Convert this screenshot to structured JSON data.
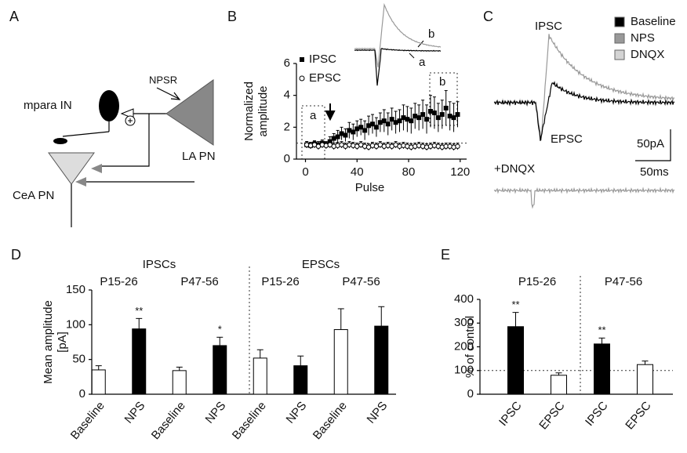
{
  "panel_labels": [
    "A",
    "B",
    "C",
    "D",
    "E"
  ],
  "diagram": {
    "cells": [
      "mpara IN",
      "LA PN",
      "CeA PN"
    ],
    "receptor": "NPSR"
  },
  "traces": {
    "top_labels": [
      "IPSC",
      "EPSC"
    ],
    "bottom_label": "+DNQX",
    "scale_y": "50pA",
    "scale_x": "50ms",
    "legend": [
      {
        "name": "Baseline",
        "color": "#000000"
      },
      {
        "name": "NPS",
        "color": "#999999"
      },
      {
        "name": "DNQX",
        "color": "#d4d4d4"
      }
    ],
    "inset_labels": [
      "a",
      "b"
    ]
  },
  "chart_data": [
    {
      "type": "scatter",
      "x_label": "Pulse",
      "y_label": [
        "Normalized",
        "amplitude"
      ],
      "box_labels": [
        "a",
        "b"
      ],
      "xlim": [
        -7,
        125
      ],
      "xticks": [
        0,
        40,
        80,
        120
      ],
      "ylim": [
        0,
        6
      ],
      "yticks": [
        0,
        2,
        4,
        6
      ],
      "reference_line": 1,
      "x": [
        1,
        4,
        7,
        10,
        13,
        16,
        19,
        22,
        25,
        28,
        31,
        34,
        37,
        40,
        43,
        46,
        49,
        52,
        55,
        58,
        61,
        64,
        67,
        70,
        73,
        76,
        79,
        82,
        85,
        88,
        91,
        94,
        97,
        100,
        103,
        106,
        109,
        112,
        115,
        118
      ],
      "series": [
        {
          "name": "IPSC",
          "marker": "square",
          "color": "#000000",
          "values": [
            0.9,
            0.85,
            0.95,
            0.9,
            1.0,
            0.9,
            1.1,
            1.3,
            1.4,
            1.6,
            1.5,
            1.8,
            1.7,
            1.9,
            2.0,
            1.8,
            2.1,
            2.2,
            2.0,
            2.3,
            2.4,
            2.2,
            2.5,
            2.3,
            2.4,
            2.6,
            2.5,
            2.4,
            2.7,
            2.6,
            2.8,
            2.5,
            3.0,
            2.9,
            2.6,
            2.8,
            3.2,
            2.7,
            2.6,
            2.8
          ],
          "errors": [
            0.2,
            0.2,
            0.2,
            0.2,
            0.2,
            0.2,
            0.3,
            0.3,
            0.4,
            0.4,
            0.4,
            0.5,
            0.5,
            0.5,
            0.5,
            0.6,
            0.6,
            0.6,
            0.6,
            0.6,
            0.7,
            0.7,
            0.7,
            0.7,
            0.7,
            0.8,
            0.8,
            0.8,
            0.8,
            0.8,
            0.9,
            0.9,
            1.0,
            1.0,
            0.9,
            0.9,
            1.1,
            0.9,
            0.9,
            0.8
          ]
        },
        {
          "name": "EPSC",
          "marker": "circle",
          "color": "#000000",
          "values": [
            0.9,
            0.85,
            0.9,
            0.8,
            0.9,
            0.85,
            0.9,
            0.8,
            0.85,
            0.9,
            0.8,
            0.9,
            0.85,
            0.8,
            0.9,
            0.8,
            0.75,
            0.85,
            0.8,
            0.9,
            0.8,
            0.85,
            0.8,
            0.9,
            0.8,
            0.85,
            0.8,
            0.75,
            0.8,
            0.85,
            0.8,
            0.75,
            0.8,
            0.85,
            0.8,
            0.75,
            0.8,
            0.8,
            0.75,
            0.8
          ],
          "errors": [
            0.2,
            0.2,
            0.2,
            0.2,
            0.2,
            0.2,
            0.2,
            0.2,
            0.2,
            0.2,
            0.2,
            0.2,
            0.2,
            0.2,
            0.2,
            0.2,
            0.2,
            0.2,
            0.2,
            0.2,
            0.2,
            0.2,
            0.2,
            0.2,
            0.2,
            0.2,
            0.2,
            0.2,
            0.2,
            0.2,
            0.2,
            0.2,
            0.2,
            0.2,
            0.2,
            0.2,
            0.2,
            0.2,
            0.2,
            0.2
          ]
        }
      ]
    },
    {
      "type": "bar",
      "y_label": [
        "Mean amplitude",
        "[pA]"
      ],
      "group_labels": [
        "IPSCs",
        "EPSCs"
      ],
      "subgroup_labels": [
        "P15-26",
        "P47-56",
        "P15-26",
        "P47-56"
      ],
      "categories": [
        "Baseline",
        "NPS",
        "Baseline",
        "NPS",
        "Baseline",
        "NPS",
        "Baseline",
        "NPS"
      ],
      "values": [
        35,
        94,
        34,
        70,
        52,
        41,
        93,
        98
      ],
      "errors": [
        6,
        15,
        5,
        12,
        12,
        14,
        30,
        28
      ],
      "colors": [
        "#ffffff",
        "#000000",
        "#ffffff",
        "#000000",
        "#ffffff",
        "#000000",
        "#ffffff",
        "#000000"
      ],
      "significance": [
        null,
        "**",
        null,
        "*",
        null,
        null,
        null,
        null
      ],
      "ylim": [
        0,
        150
      ],
      "yticks": [
        0,
        50,
        100,
        150
      ]
    },
    {
      "type": "bar",
      "y_label": [
        "% of control"
      ],
      "subgroup_labels": [
        "P15-26",
        "P47-56"
      ],
      "categories": [
        "IPSC",
        "EPSC",
        "IPSC",
        "EPSC"
      ],
      "values": [
        285,
        80,
        212,
        125
      ],
      "errors": [
        60,
        10,
        25,
        15
      ],
      "colors": [
        "#000000",
        "#ffffff",
        "#000000",
        "#ffffff"
      ],
      "significance": [
        "**",
        null,
        "**",
        null
      ],
      "ylim": [
        0,
        400
      ],
      "yticks": [
        0,
        100,
        200,
        300,
        400
      ],
      "reference_line": 100
    }
  ]
}
